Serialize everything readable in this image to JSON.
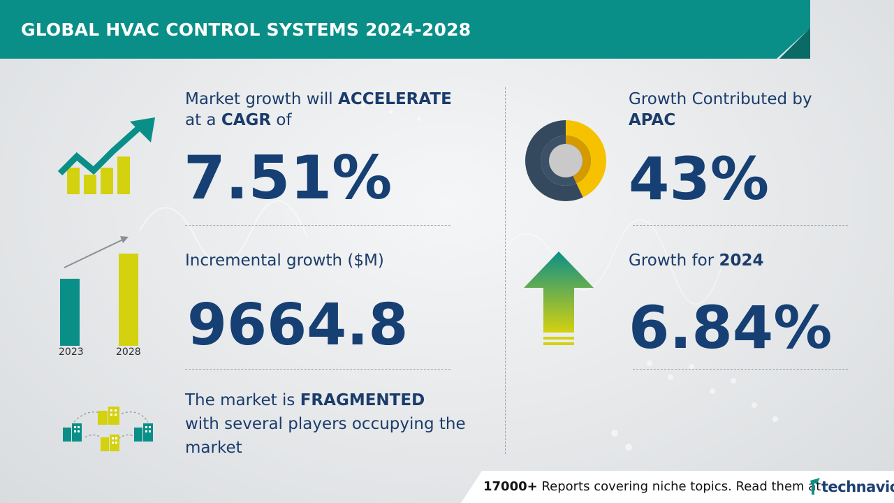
{
  "header": {
    "title": "GLOBAL HVAC CONTROL SYSTEMS 2024-2028"
  },
  "cagr": {
    "line1_prefix": "Market growth will ",
    "line1_bold": "ACCELERATE",
    "line2_prefix": "at a ",
    "line2_bold": "CAGR",
    "line2_suffix": " of",
    "value": "7.51%"
  },
  "incremental": {
    "label": "Incremental growth ($M)",
    "value": "9664.8",
    "year_start": "2023",
    "year_end": "2028"
  },
  "fragmented": {
    "line1_prefix": "The market is ",
    "line1_bold": "FRAGMENTED",
    "line2": "with several players occupying the",
    "line3": "market"
  },
  "region": {
    "label": "Growth Contributed by",
    "region_name": "APAC",
    "value": "43%",
    "share": 0.43
  },
  "yoy": {
    "label_prefix": "Growth for ",
    "year": "2024",
    "value": "6.84%"
  },
  "footer": {
    "count": "17000+",
    "text": " Reports covering niche topics. Read them at",
    "brand": "technavio"
  },
  "colors": {
    "teal": "#0a8f88",
    "navy": "#163f73",
    "yellow": "#d4d10f",
    "amber": "#f6c200",
    "slate": "#34495e"
  },
  "icons": [
    "growth-arrow-icon",
    "bar-comparison-icon",
    "buildings-network-icon",
    "donut-chart-icon",
    "up-arrow-icon",
    "technavio-logo-icon"
  ]
}
